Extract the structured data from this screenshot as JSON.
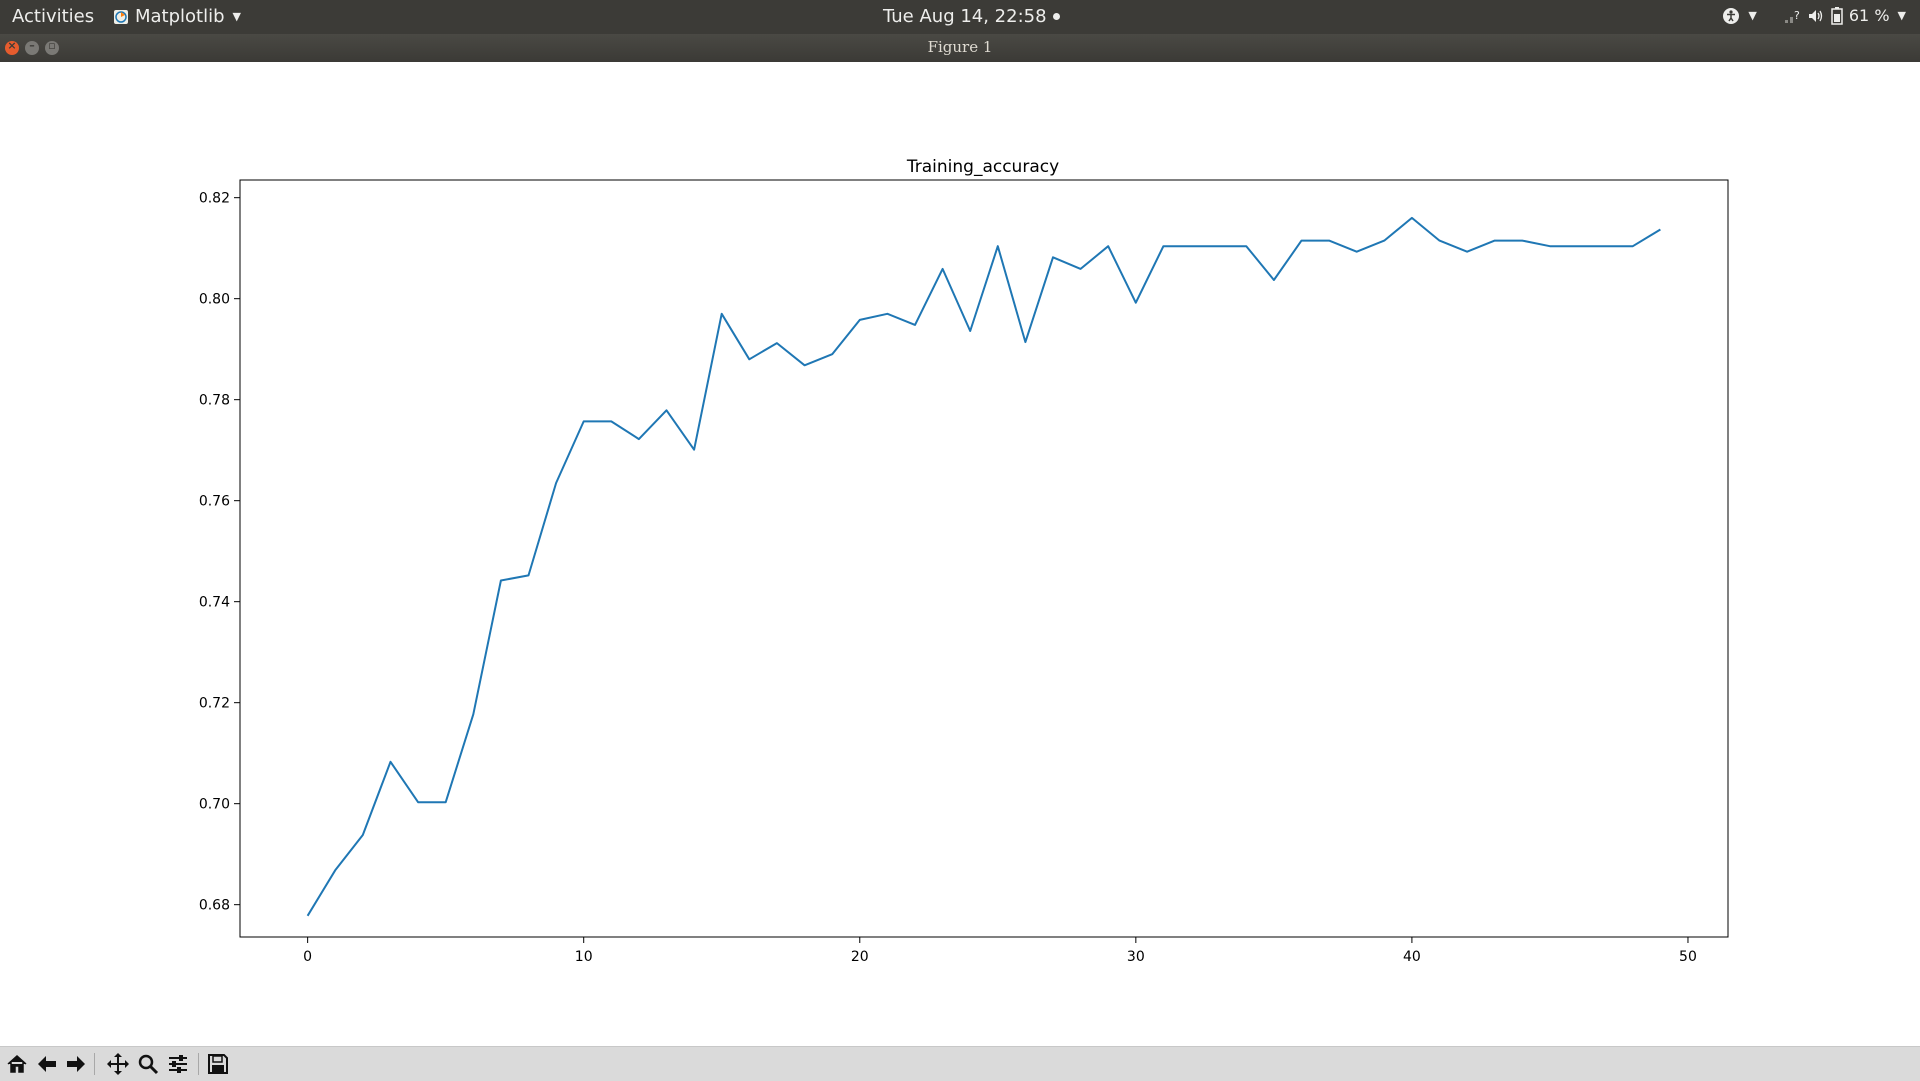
{
  "topbar": {
    "activities": "Activities",
    "app_name": "Matplotlib",
    "clock": "Tue Aug 14, 22:58",
    "battery": "61 %",
    "icons": [
      "accessibility-icon",
      "network-icon",
      "volume-icon",
      "battery-icon"
    ]
  },
  "window": {
    "title": "Figure 1",
    "buttons": [
      "close",
      "minimize",
      "maximize"
    ]
  },
  "toolbar": {
    "buttons": [
      "home",
      "back",
      "forward",
      "pan",
      "zoom",
      "configure-subplots",
      "save"
    ]
  },
  "chart_data": {
    "type": "line",
    "title": "Training_accuracy",
    "xlabel": "",
    "ylabel": "",
    "xlim": [
      -2.45,
      51.45
    ],
    "ylim": [
      0.6736,
      0.8235
    ],
    "xticks": [
      0,
      10,
      20,
      30,
      40,
      50
    ],
    "yticks": [
      0.68,
      0.7,
      0.72,
      0.74,
      0.76,
      0.78,
      0.8,
      0.82
    ],
    "ytick_labels": [
      "0.68",
      "0.70",
      "0.72",
      "0.74",
      "0.76",
      "0.78",
      "0.80",
      "0.82"
    ],
    "line_color": "#1f77b4",
    "grid": false,
    "x": [
      0,
      1,
      2,
      3,
      4,
      5,
      6,
      7,
      8,
      9,
      10,
      11,
      12,
      13,
      14,
      15,
      16,
      17,
      18,
      19,
      20,
      21,
      22,
      23,
      24,
      25,
      26,
      27,
      28,
      29,
      30,
      31,
      32,
      33,
      34,
      35,
      36,
      37,
      38,
      39,
      40,
      41,
      42,
      43,
      44,
      45,
      46,
      47,
      48,
      49
    ],
    "y": [
      0.6778,
      0.6868,
      0.6938,
      0.7083,
      0.7003,
      0.7003,
      0.7177,
      0.7442,
      0.7452,
      0.7635,
      0.7757,
      0.7757,
      0.7722,
      0.7779,
      0.7701,
      0.797,
      0.788,
      0.7912,
      0.7868,
      0.789,
      0.7958,
      0.797,
      0.7948,
      0.8059,
      0.7936,
      0.8104,
      0.7914,
      0.8082,
      0.8059,
      0.8104,
      0.7992,
      0.8104,
      0.8104,
      0.8104,
      0.8104,
      0.8037,
      0.8115,
      0.8115,
      0.8093,
      0.8115,
      0.816,
      0.8115,
      0.8093,
      0.8115,
      0.8115,
      0.8104,
      0.8104,
      0.8104,
      0.8104,
      0.8137
    ]
  }
}
